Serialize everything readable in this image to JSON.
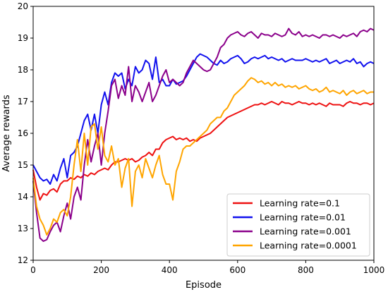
{
  "chart_data": {
    "type": "line",
    "title": "",
    "xlabel": "Episode",
    "ylabel": "Average rewards",
    "xlim": [
      0,
      1000
    ],
    "ylim": [
      12,
      20
    ],
    "x_ticks": [
      0,
      200,
      400,
      600,
      800,
      1000
    ],
    "y_ticks": [
      12,
      13,
      14,
      15,
      16,
      17,
      18,
      19,
      20
    ],
    "grid": false,
    "legend_position": "lower-right",
    "x": [
      0,
      10,
      20,
      30,
      40,
      50,
      60,
      70,
      80,
      90,
      100,
      110,
      120,
      130,
      140,
      150,
      160,
      170,
      180,
      190,
      200,
      210,
      220,
      230,
      240,
      250,
      260,
      270,
      280,
      290,
      300,
      310,
      320,
      330,
      340,
      350,
      360,
      370,
      380,
      390,
      400,
      410,
      420,
      430,
      440,
      450,
      460,
      470,
      480,
      490,
      500,
      510,
      520,
      530,
      540,
      550,
      560,
      570,
      580,
      590,
      600,
      610,
      620,
      630,
      640,
      650,
      660,
      670,
      680,
      690,
      700,
      710,
      720,
      730,
      740,
      750,
      760,
      770,
      780,
      790,
      800,
      810,
      820,
      830,
      840,
      850,
      860,
      870,
      880,
      890,
      900,
      910,
      920,
      930,
      940,
      950,
      960,
      970,
      980,
      990,
      1000
    ],
    "series": [
      {
        "name": "Learning rate=0.1",
        "color": "#ee1111",
        "values": [
          14.85,
          14.3,
          13.9,
          14.1,
          14.05,
          14.2,
          14.25,
          14.15,
          14.4,
          14.5,
          14.5,
          14.6,
          14.55,
          14.65,
          14.6,
          14.7,
          14.65,
          14.75,
          14.7,
          14.8,
          14.85,
          14.9,
          14.85,
          15.0,
          15.1,
          15.1,
          15.15,
          15.2,
          15.15,
          15.2,
          15.1,
          15.15,
          15.25,
          15.3,
          15.4,
          15.3,
          15.5,
          15.5,
          15.7,
          15.8,
          15.85,
          15.9,
          15.8,
          15.85,
          15.8,
          15.85,
          15.75,
          15.8,
          15.75,
          15.85,
          15.9,
          15.95,
          16.0,
          16.1,
          16.2,
          16.3,
          16.4,
          16.5,
          16.55,
          16.6,
          16.65,
          16.7,
          16.75,
          16.8,
          16.85,
          16.9,
          16.9,
          16.95,
          16.9,
          16.95,
          17.0,
          16.95,
          16.9,
          17.0,
          16.95,
          16.95,
          16.9,
          16.95,
          17.0,
          16.95,
          16.95,
          16.9,
          16.95,
          16.9,
          16.95,
          16.9,
          16.85,
          16.95,
          16.9,
          16.9,
          16.9,
          16.85,
          16.95,
          17.0,
          16.95,
          16.95,
          16.9,
          16.95,
          16.95,
          16.9,
          16.95
        ]
      },
      {
        "name": "Learning rate=0.01",
        "color": "#1111ee",
        "values": [
          15.0,
          14.8,
          14.6,
          14.5,
          14.55,
          14.4,
          14.7,
          14.5,
          14.9,
          15.2,
          14.6,
          15.3,
          15.4,
          15.6,
          16.0,
          16.4,
          16.6,
          16.1,
          16.6,
          16.0,
          16.9,
          17.3,
          16.9,
          17.6,
          17.9,
          17.8,
          17.9,
          17.4,
          17.7,
          17.5,
          18.1,
          17.9,
          18.0,
          18.3,
          18.2,
          17.7,
          18.4,
          17.6,
          17.7,
          17.5,
          17.5,
          17.7,
          17.55,
          17.6,
          17.65,
          17.8,
          18.0,
          18.2,
          18.4,
          18.5,
          18.45,
          18.4,
          18.3,
          18.2,
          18.15,
          18.3,
          18.2,
          18.25,
          18.35,
          18.4,
          18.45,
          18.35,
          18.2,
          18.25,
          18.35,
          18.4,
          18.35,
          18.4,
          18.45,
          18.35,
          18.4,
          18.35,
          18.3,
          18.35,
          18.25,
          18.3,
          18.35,
          18.3,
          18.3,
          18.3,
          18.35,
          18.3,
          18.25,
          18.3,
          18.25,
          18.3,
          18.35,
          18.2,
          18.25,
          18.3,
          18.2,
          18.25,
          18.3,
          18.25,
          18.35,
          18.2,
          18.25,
          18.1,
          18.2,
          18.25,
          18.2
        ]
      },
      {
        "name": "Learning rate=0.001",
        "color": "#8b008b",
        "values": [
          14.5,
          13.5,
          12.7,
          12.6,
          12.65,
          12.9,
          13.1,
          13.2,
          12.9,
          13.4,
          13.8,
          13.3,
          14.0,
          14.3,
          13.9,
          15.0,
          15.8,
          15.1,
          15.6,
          16.0,
          15.0,
          16.0,
          16.7,
          17.5,
          17.7,
          17.1,
          17.5,
          17.2,
          18.1,
          17.0,
          17.5,
          17.3,
          17.0,
          17.3,
          17.6,
          17.0,
          17.2,
          17.5,
          17.8,
          18.0,
          17.6,
          17.7,
          17.6,
          17.5,
          17.6,
          17.9,
          18.1,
          18.3,
          18.2,
          18.1,
          18.0,
          17.95,
          18.0,
          18.2,
          18.4,
          18.7,
          18.8,
          19.0,
          19.1,
          19.15,
          19.2,
          19.1,
          19.05,
          19.15,
          19.2,
          19.1,
          19.0,
          19.15,
          19.1,
          19.1,
          19.05,
          19.15,
          19.1,
          19.05,
          19.1,
          19.3,
          19.15,
          19.1,
          19.2,
          19.05,
          19.1,
          19.05,
          19.1,
          19.05,
          19.0,
          19.1,
          19.1,
          19.05,
          19.1,
          19.05,
          19.0,
          19.1,
          19.05,
          19.1,
          19.15,
          19.05,
          19.2,
          19.25,
          19.2,
          19.3,
          19.25
        ]
      },
      {
        "name": "Learning rate=0.0001",
        "color": "#ffa500",
        "values": [
          14.6,
          13.7,
          13.3,
          13.1,
          12.8,
          13.0,
          13.3,
          13.2,
          13.5,
          13.6,
          13.4,
          14.0,
          15.0,
          15.8,
          14.8,
          16.0,
          15.0,
          16.2,
          16.3,
          15.5,
          16.2,
          15.3,
          15.1,
          15.6,
          15.0,
          15.2,
          14.3,
          14.9,
          15.2,
          13.7,
          14.8,
          15.0,
          14.6,
          15.2,
          14.9,
          14.6,
          15.0,
          15.3,
          14.7,
          14.4,
          14.4,
          13.9,
          14.8,
          15.1,
          15.5,
          15.6,
          15.6,
          15.7,
          15.8,
          15.9,
          16.0,
          16.1,
          16.3,
          16.4,
          16.5,
          16.5,
          16.7,
          16.8,
          17.0,
          17.2,
          17.3,
          17.4,
          17.5,
          17.65,
          17.75,
          17.7,
          17.6,
          17.65,
          17.55,
          17.6,
          17.5,
          17.6,
          17.5,
          17.55,
          17.45,
          17.5,
          17.45,
          17.5,
          17.4,
          17.45,
          17.5,
          17.4,
          17.35,
          17.4,
          17.3,
          17.35,
          17.45,
          17.3,
          17.35,
          17.3,
          17.25,
          17.35,
          17.2,
          17.3,
          17.35,
          17.25,
          17.3,
          17.35,
          17.25,
          17.3,
          17.3
        ]
      }
    ]
  }
}
